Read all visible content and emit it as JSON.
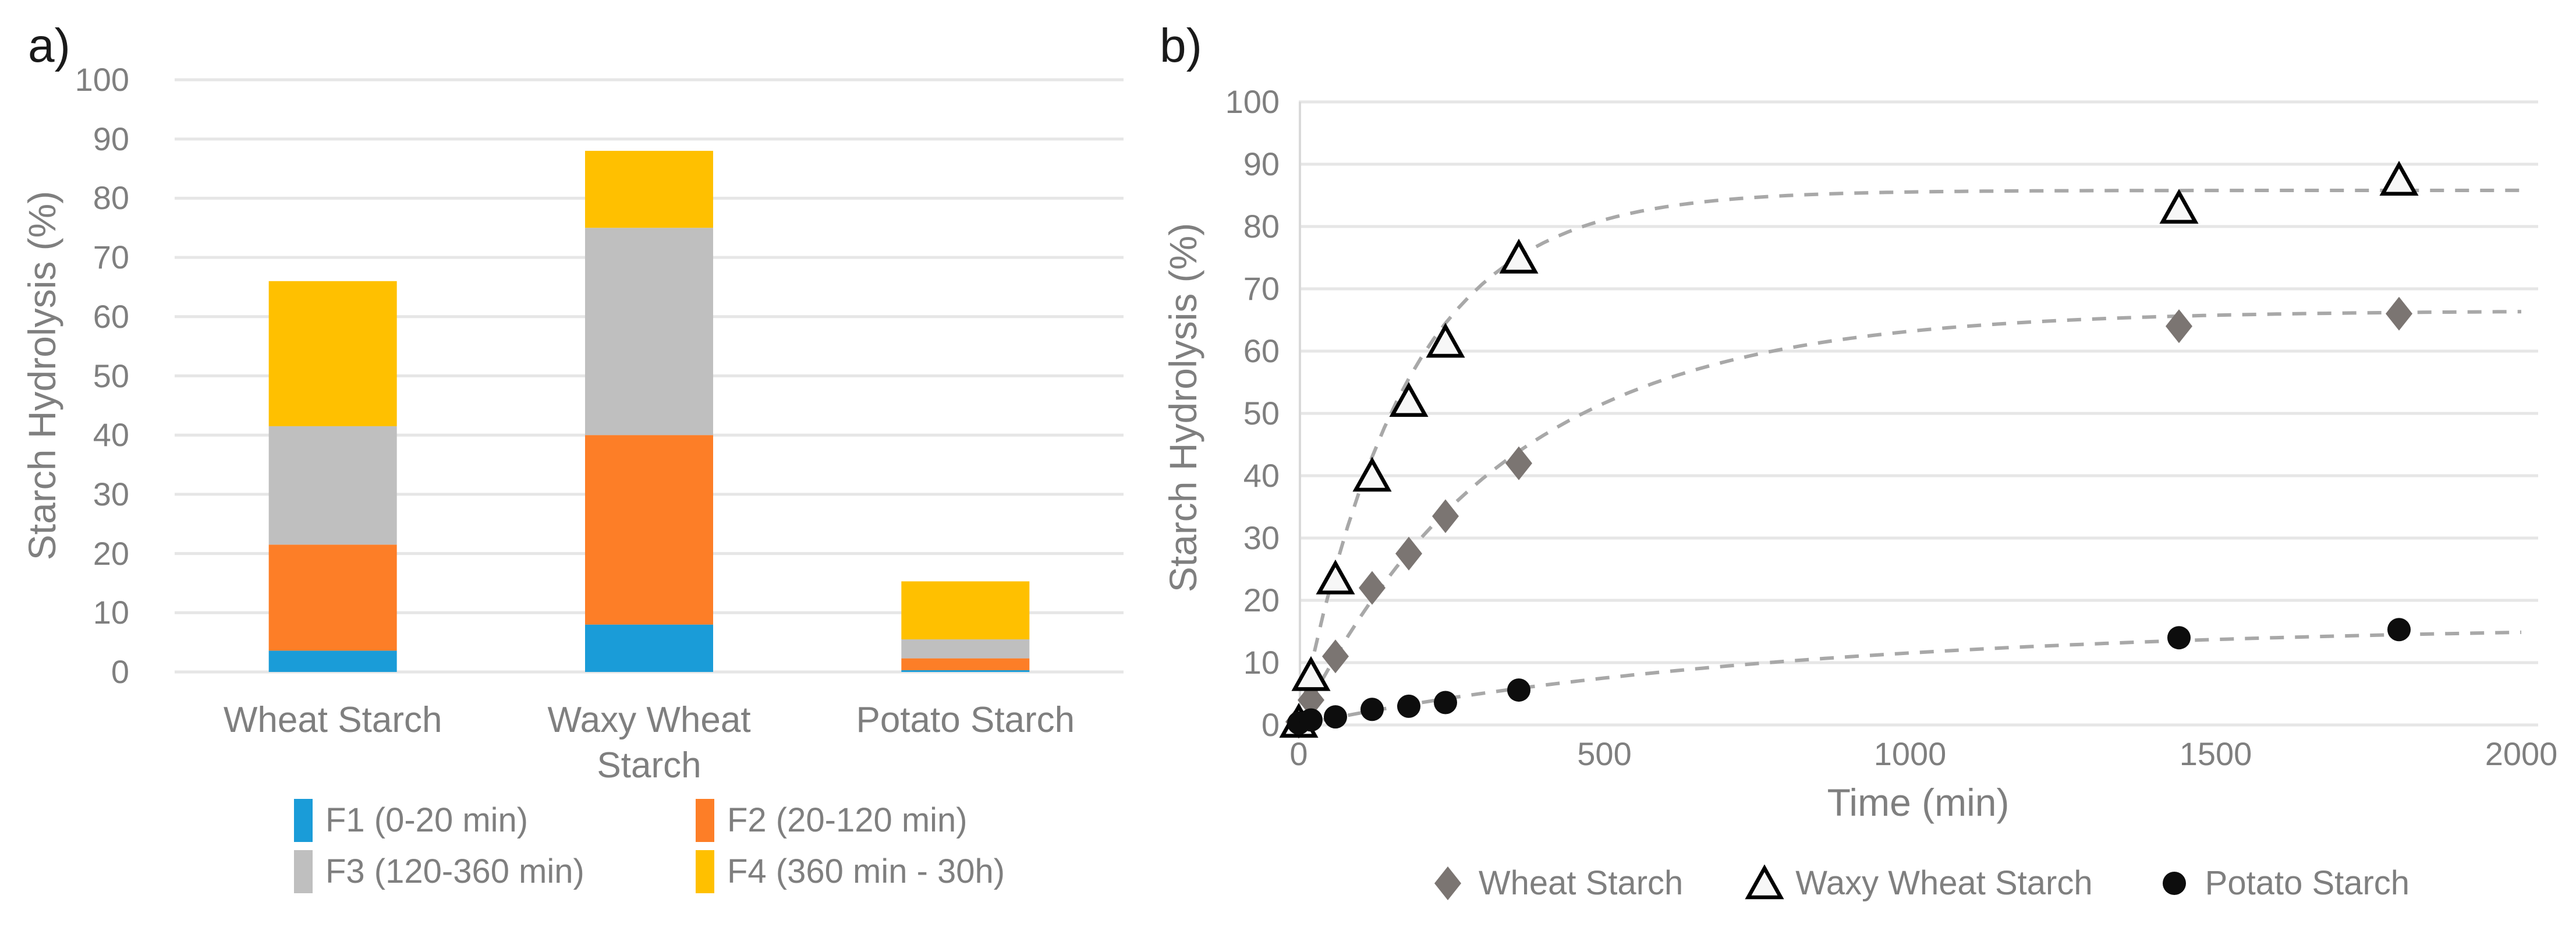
{
  "figure": {
    "background": "#ffffff",
    "text_color": "#7f7f7f",
    "panel_letter_color": "#1a1a1a",
    "gridline_color": "#e6e6e6",
    "axisline_color": "#d9d9d9",
    "trendline_color": "#a8a8a8"
  },
  "chart_data": [
    {
      "type": "bar",
      "stacked": true,
      "panel_label": "a)",
      "ylabel": "Starch Hydrolysis (%)",
      "ylim": [
        0,
        100
      ],
      "yticks": [
        0,
        10,
        20,
        30,
        40,
        50,
        60,
        70,
        80,
        90,
        100
      ],
      "grid": true,
      "legend_position": "bottom",
      "categories": [
        "Wheat Starch",
        "Waxy Wheat Starch",
        "Potato Starch"
      ],
      "series": [
        {
          "name": "F1 (0-20 min)",
          "color": "#1a9cd8",
          "values": [
            3.6,
            8,
            0.3
          ]
        },
        {
          "name": "F2 (20-120 min)",
          "color": "#fd7e27",
          "values": [
            17.9,
            32,
            2.0
          ]
        },
        {
          "name": "F3 (120-360 min)",
          "color": "#bfbfbf",
          "values": [
            20,
            35,
            3.2
          ]
        },
        {
          "name": "F4 (360 min - 30h)",
          "color": "#ffc000",
          "values": [
            24.5,
            13,
            9.8
          ]
        }
      ],
      "stacked_totals": [
        66,
        88,
        15.3
      ]
    },
    {
      "type": "scatter",
      "panel_label": "b)",
      "xlabel": "Time (min)",
      "ylabel": "Starch Hydrolysis (%)",
      "xlim": [
        0,
        2000
      ],
      "xticks": [
        0,
        500,
        1000,
        1500,
        2000
      ],
      "ylim": [
        0,
        100
      ],
      "yticks": [
        0,
        10,
        20,
        30,
        40,
        50,
        60,
        70,
        80,
        90,
        100
      ],
      "grid": true,
      "legend_position": "bottom",
      "trend_lines": {
        "style": "dashed",
        "color": "#a8a8a8"
      },
      "x": [
        0,
        20,
        60,
        120,
        180,
        240,
        360,
        1440,
        1800
      ],
      "series": [
        {
          "name": "Wheat Starch",
          "marker": "filled-diamond",
          "color": "#7b7572",
          "y": [
            0.5,
            4,
            11,
            22,
            27.5,
            33.5,
            42,
            64,
            66
          ],
          "trend": {
            "model": "first-order",
            "plateau": 66.5,
            "rate_per_min": 0.003
          }
        },
        {
          "name": "Waxy Wheat Starch",
          "marker": "open-triangle",
          "color": "#000000",
          "fill": "#f7f7f7",
          "y": [
            0.5,
            8,
            23.5,
            40,
            52,
            61.5,
            75,
            83,
            87.5
          ],
          "trend": {
            "model": "first-order",
            "plateau": 85.8,
            "rate_per_min": 0.0058
          }
        },
        {
          "name": "Potato Starch",
          "marker": "filled-circle",
          "color": "#0d0d0d",
          "y": [
            0.3,
            0.8,
            1.3,
            2.5,
            3.0,
            3.6,
            5.6,
            14,
            15.3
          ],
          "trend": {
            "model": "first-order",
            "plateau": 16.2,
            "rate_per_min": 0.00125
          }
        }
      ]
    }
  ]
}
